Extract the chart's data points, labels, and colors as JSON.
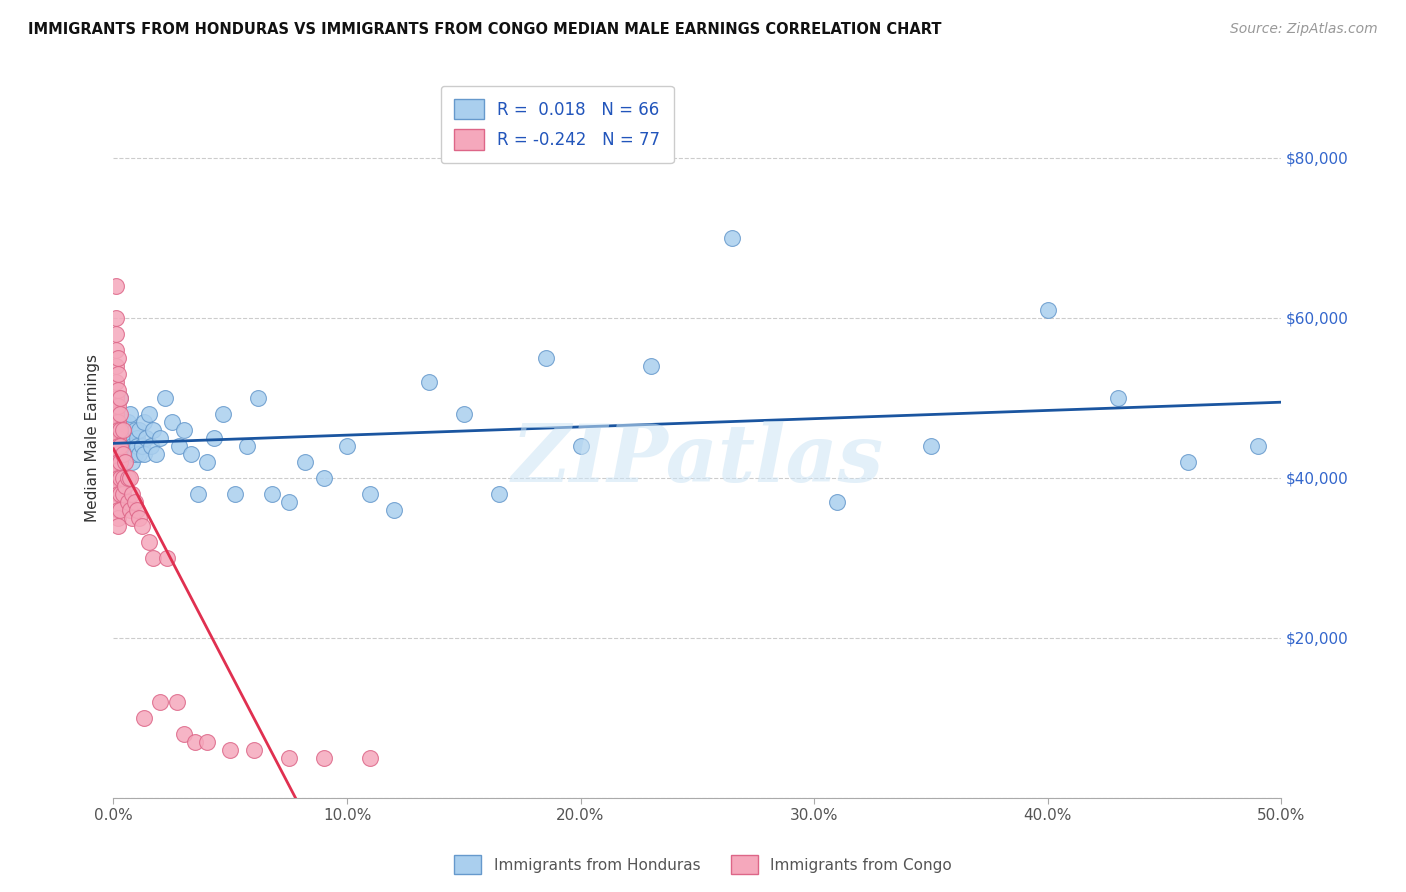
{
  "title": "IMMIGRANTS FROM HONDURAS VS IMMIGRANTS FROM CONGO MEDIAN MALE EARNINGS CORRELATION CHART",
  "source": "Source: ZipAtlas.com",
  "ylabel": "Median Male Earnings",
  "xlim": [
    0,
    0.5
  ],
  "ylim": [
    0,
    90000
  ],
  "xticks": [
    0.0,
    0.1,
    0.2,
    0.3,
    0.4,
    0.5
  ],
  "xticklabels": [
    "0.0%",
    "10.0%",
    "20.0%",
    "30.0%",
    "40.0%",
    "50.0%"
  ],
  "ytick_labels_right": [
    "$20,000",
    "$40,000",
    "$60,000",
    "$80,000"
  ],
  "honduras_color": "#aacfee",
  "congo_color": "#f5a8bc",
  "honduras_edge": "#6699cc",
  "congo_edge": "#dd6688",
  "regression_honduras_color": "#1a55a0",
  "regression_congo_color": "#e03050",
  "regression_congo_dashed_color": "#cccccc",
  "legend_R_honduras": " 0.018",
  "legend_N_honduras": "66",
  "legend_R_congo": "-0.242",
  "legend_N_congo": "77",
  "watermark": "ZIPatlas",
  "honduras_x": [
    0.001,
    0.002,
    0.002,
    0.003,
    0.003,
    0.003,
    0.004,
    0.004,
    0.004,
    0.005,
    0.005,
    0.005,
    0.006,
    0.006,
    0.007,
    0.007,
    0.007,
    0.008,
    0.008,
    0.009,
    0.009,
    0.01,
    0.01,
    0.011,
    0.011,
    0.012,
    0.013,
    0.013,
    0.014,
    0.015,
    0.016,
    0.017,
    0.018,
    0.02,
    0.022,
    0.025,
    0.028,
    0.03,
    0.033,
    0.036,
    0.04,
    0.043,
    0.047,
    0.052,
    0.057,
    0.062,
    0.068,
    0.075,
    0.082,
    0.09,
    0.1,
    0.11,
    0.12,
    0.135,
    0.15,
    0.165,
    0.185,
    0.2,
    0.23,
    0.265,
    0.31,
    0.35,
    0.4,
    0.43,
    0.46,
    0.49
  ],
  "honduras_y": [
    46000,
    44000,
    48000,
    45000,
    43000,
    50000,
    47000,
    44000,
    42000,
    46000,
    43000,
    45000,
    44000,
    47000,
    43000,
    45000,
    48000,
    44000,
    42000,
    46000,
    43000,
    45000,
    44000,
    43000,
    46000,
    44000,
    47000,
    43000,
    45000,
    48000,
    44000,
    46000,
    43000,
    45000,
    50000,
    47000,
    44000,
    46000,
    43000,
    38000,
    42000,
    45000,
    48000,
    38000,
    44000,
    50000,
    38000,
    37000,
    42000,
    40000,
    44000,
    38000,
    36000,
    52000,
    48000,
    38000,
    55000,
    44000,
    54000,
    70000,
    37000,
    44000,
    61000,
    50000,
    42000,
    44000
  ],
  "congo_x": [
    0.001,
    0.001,
    0.001,
    0.001,
    0.001,
    0.001,
    0.001,
    0.001,
    0.001,
    0.001,
    0.001,
    0.001,
    0.001,
    0.001,
    0.001,
    0.001,
    0.001,
    0.001,
    0.001,
    0.001,
    0.001,
    0.002,
    0.002,
    0.002,
    0.002,
    0.002,
    0.002,
    0.002,
    0.002,
    0.002,
    0.002,
    0.002,
    0.002,
    0.002,
    0.002,
    0.002,
    0.002,
    0.002,
    0.002,
    0.003,
    0.003,
    0.003,
    0.003,
    0.003,
    0.003,
    0.003,
    0.003,
    0.004,
    0.004,
    0.004,
    0.004,
    0.005,
    0.005,
    0.006,
    0.006,
    0.007,
    0.007,
    0.008,
    0.008,
    0.009,
    0.01,
    0.011,
    0.012,
    0.013,
    0.015,
    0.017,
    0.02,
    0.023,
    0.027,
    0.03,
    0.035,
    0.04,
    0.05,
    0.06,
    0.075,
    0.09,
    0.11
  ],
  "congo_y": [
    64000,
    60000,
    58000,
    56000,
    54000,
    52000,
    50000,
    49000,
    48000,
    47000,
    46000,
    45000,
    44000,
    43000,
    43000,
    42000,
    42000,
    41000,
    40000,
    40000,
    39000,
    55000,
    53000,
    51000,
    49000,
    47000,
    46000,
    45000,
    44000,
    43000,
    42000,
    41000,
    40000,
    39000,
    38000,
    37000,
    36000,
    35000,
    34000,
    50000,
    48000,
    46000,
    44000,
    42000,
    40000,
    38000,
    36000,
    46000,
    43000,
    40000,
    38000,
    42000,
    39000,
    40000,
    37000,
    40000,
    36000,
    38000,
    35000,
    37000,
    36000,
    35000,
    34000,
    10000,
    32000,
    30000,
    12000,
    30000,
    12000,
    8000,
    7000,
    7000,
    6000,
    6000,
    5000,
    5000,
    5000
  ]
}
